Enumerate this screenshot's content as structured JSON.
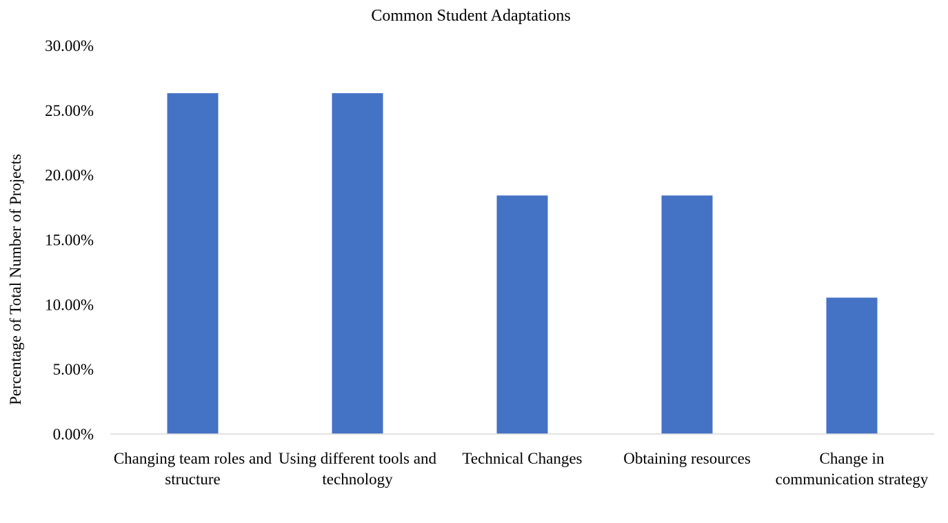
{
  "chart_data": {
    "type": "bar",
    "title": "Common Student Adaptations",
    "xlabel": "",
    "ylabel": "Percentage of Total Number of Projects",
    "categories": [
      "Changing team roles and structure",
      "Using different tools and technology",
      "Technical Changes",
      "Obtaining resources",
      "Change in communication strategy"
    ],
    "values": [
      26.32,
      26.32,
      18.42,
      18.42,
      10.53
    ],
    "ylim": [
      0,
      30
    ],
    "yticks": [
      0,
      5,
      10,
      15,
      20,
      25,
      30
    ],
    "ytick_labels": [
      "0.00%",
      "5.00%",
      "10.00%",
      "15.00%",
      "20.00%",
      "25.00%",
      "30.00%"
    ],
    "grid": false,
    "legend": "none",
    "bar_color": "#4472C4"
  }
}
